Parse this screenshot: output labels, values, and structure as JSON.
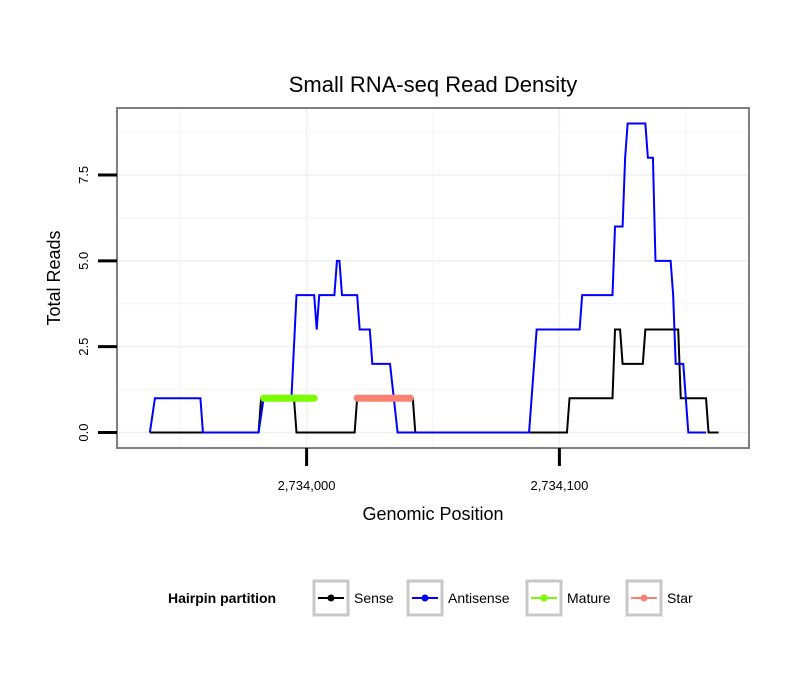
{
  "chart_data": {
    "type": "line",
    "title": "Small RNA-seq Read Density",
    "xlabel": "Genomic Position",
    "ylabel": "Total Reads",
    "xlim": [
      2733925,
      2734175
    ],
    "ylim": [
      -0.45,
      9.45
    ],
    "x_ticks": [
      {
        "value": 2734000,
        "label": "2,734,000"
      },
      {
        "value": 2734100,
        "label": "2,734,100"
      }
    ],
    "y_ticks": [
      {
        "value": 0,
        "label": "0.0"
      },
      {
        "value": 2.5,
        "label": "2.5"
      },
      {
        "value": 5,
        "label": "5.0"
      },
      {
        "value": 7.5,
        "label": "7.5"
      }
    ],
    "grid": true,
    "legend": {
      "title": "Hairpin partition",
      "position": "bottom",
      "entries": [
        {
          "label": "Sense",
          "color": "#000000"
        },
        {
          "label": "Antisense",
          "color": "#0000ff"
        },
        {
          "label": "Mature",
          "color": "#7cfc00"
        },
        {
          "label": "Star",
          "color": "#fa8072"
        }
      ]
    },
    "series": [
      {
        "name": "Sense",
        "color": "#000000",
        "points": [
          [
            2733938,
            0
          ],
          [
            2733981,
            0
          ],
          [
            2733982,
            1
          ],
          [
            2733995,
            1
          ],
          [
            2733996,
            0
          ],
          [
            2734019,
            0
          ],
          [
            2734020,
            1
          ],
          [
            2734042,
            1
          ],
          [
            2734043,
            0
          ],
          [
            2734103,
            0
          ],
          [
            2734104,
            1
          ],
          [
            2734121,
            1
          ],
          [
            2734122,
            3
          ],
          [
            2734124,
            3
          ],
          [
            2734125,
            2
          ],
          [
            2734133,
            2
          ],
          [
            2734134,
            3
          ],
          [
            2734147,
            3
          ],
          [
            2734148,
            1
          ],
          [
            2734158,
            1
          ],
          [
            2734159,
            0
          ],
          [
            2734163,
            0
          ]
        ]
      },
      {
        "name": "Antisense",
        "color": "#0000ff",
        "points": [
          [
            2733938,
            0
          ],
          [
            2733940,
            1
          ],
          [
            2733958,
            1
          ],
          [
            2733959,
            0
          ],
          [
            2733981,
            0
          ],
          [
            2733983,
            1
          ],
          [
            2733994,
            1
          ],
          [
            2733996,
            4
          ],
          [
            2734003,
            4
          ],
          [
            2734004,
            3
          ],
          [
            2734005,
            4
          ],
          [
            2734011,
            4
          ],
          [
            2734012,
            5
          ],
          [
            2734013,
            5
          ],
          [
            2734014,
            4
          ],
          [
            2734020,
            4
          ],
          [
            2734021,
            3
          ],
          [
            2734025,
            3
          ],
          [
            2734026,
            2
          ],
          [
            2734033,
            2
          ],
          [
            2734036,
            0
          ],
          [
            2734038,
            0
          ],
          [
            2734088,
            0
          ],
          [
            2734090,
            2
          ],
          [
            2734091,
            3
          ],
          [
            2734108,
            3
          ],
          [
            2734109,
            4
          ],
          [
            2734121,
            4
          ],
          [
            2734122,
            6
          ],
          [
            2734125,
            6
          ],
          [
            2734126,
            8
          ],
          [
            2734127,
            9
          ],
          [
            2734134,
            9
          ],
          [
            2734135,
            8
          ],
          [
            2734137,
            8
          ],
          [
            2734138,
            5
          ],
          [
            2734144,
            5
          ],
          [
            2734145,
            4
          ],
          [
            2734146,
            2
          ],
          [
            2734149,
            2
          ],
          [
            2734151,
            0
          ],
          [
            2734158,
            0
          ]
        ]
      },
      {
        "name": "Mature",
        "color": "#7cfc00",
        "points": [
          [
            2733983,
            1
          ],
          [
            2734003,
            1
          ]
        ]
      },
      {
        "name": "Star",
        "color": "#fa8072",
        "points": [
          [
            2734020,
            1
          ],
          [
            2734041,
            1
          ]
        ]
      }
    ]
  }
}
